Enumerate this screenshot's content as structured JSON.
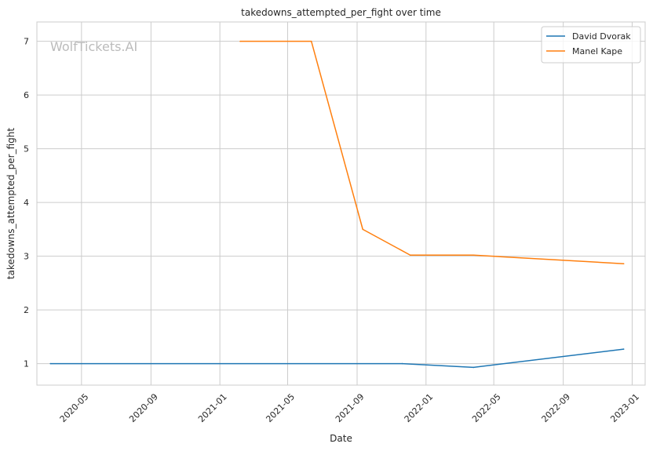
{
  "chart_data": {
    "type": "line",
    "title": "takedowns_attempted_per_fight over time",
    "xlabel": "Date",
    "ylabel": "takedowns_attempted_per_fight",
    "watermark": "WolfTickets.AI",
    "x_scale": "date",
    "xlim": [
      "2020-02-12",
      "2023-01-24"
    ],
    "ylim": [
      0.6,
      7.36
    ],
    "x_ticks": [
      "2020-05-01",
      "2020-09-01",
      "2021-01-01",
      "2021-05-01",
      "2021-09-01",
      "2022-01-01",
      "2022-05-01",
      "2022-09-01",
      "2023-01-01"
    ],
    "x_tick_labels": [
      "2020-05",
      "2020-09",
      "2021-01",
      "2021-05",
      "2021-09",
      "2022-01",
      "2022-05",
      "2022-09",
      "2023-01"
    ],
    "y_ticks": [
      1,
      2,
      3,
      4,
      5,
      6,
      7
    ],
    "y_tick_labels": [
      "1",
      "2",
      "3",
      "4",
      "5",
      "6",
      "7"
    ],
    "grid": true,
    "legend_position": "top-right",
    "series": [
      {
        "name": "David Dvorak",
        "color": "#1f77b4",
        "points": [
          {
            "x": "2020-03-07",
            "y": 1.0
          },
          {
            "x": "2021-11-20",
            "y": 1.0
          },
          {
            "x": "2022-03-26",
            "y": 0.93
          },
          {
            "x": "2022-12-17",
            "y": 1.27
          }
        ]
      },
      {
        "name": "Manel Kape",
        "color": "#ff7f0e",
        "points": [
          {
            "x": "2021-02-06",
            "y": 7.0
          },
          {
            "x": "2021-06-12",
            "y": 7.0
          },
          {
            "x": "2021-09-11",
            "y": 3.5
          },
          {
            "x": "2021-12-04",
            "y": 3.02
          },
          {
            "x": "2022-03-26",
            "y": 3.02
          },
          {
            "x": "2022-12-17",
            "y": 2.86
          }
        ]
      }
    ]
  }
}
